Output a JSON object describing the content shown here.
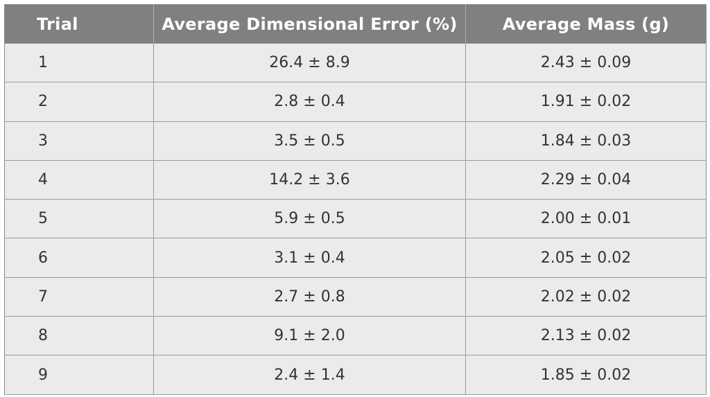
{
  "table": {
    "headers": [
      "Trial",
      "Average Dimensional Error (%)",
      "Average Mass (g)"
    ],
    "rows": [
      [
        "1",
        "26.4 ± 8.9",
        "2.43 ± 0.09"
      ],
      [
        "2",
        "2.8 ± 0.4",
        "1.91 ± 0.02"
      ],
      [
        "3",
        "3.5 ± 0.5",
        "1.84 ± 0.03"
      ],
      [
        "4",
        "14.2 ± 3.6",
        "2.29 ± 0.04"
      ],
      [
        "5",
        "5.9 ± 0.5",
        "2.00 ± 0.01"
      ],
      [
        "6",
        "3.1 ± 0.4",
        "2.05 ± 0.02"
      ],
      [
        "7",
        "2.7 ± 0.8",
        "2.02 ± 0.02"
      ],
      [
        "8",
        "9.1 ± 2.0",
        "2.13 ± 0.02"
      ],
      [
        "9",
        "2.4 ± 1.4",
        "1.85 ± 0.02"
      ]
    ]
  },
  "colors": {
    "header_bg": "#808080",
    "header_text": "#ffffff",
    "cell_bg": "#ebebeb",
    "cell_text": "#333333",
    "grid": "#9a9a9a"
  }
}
